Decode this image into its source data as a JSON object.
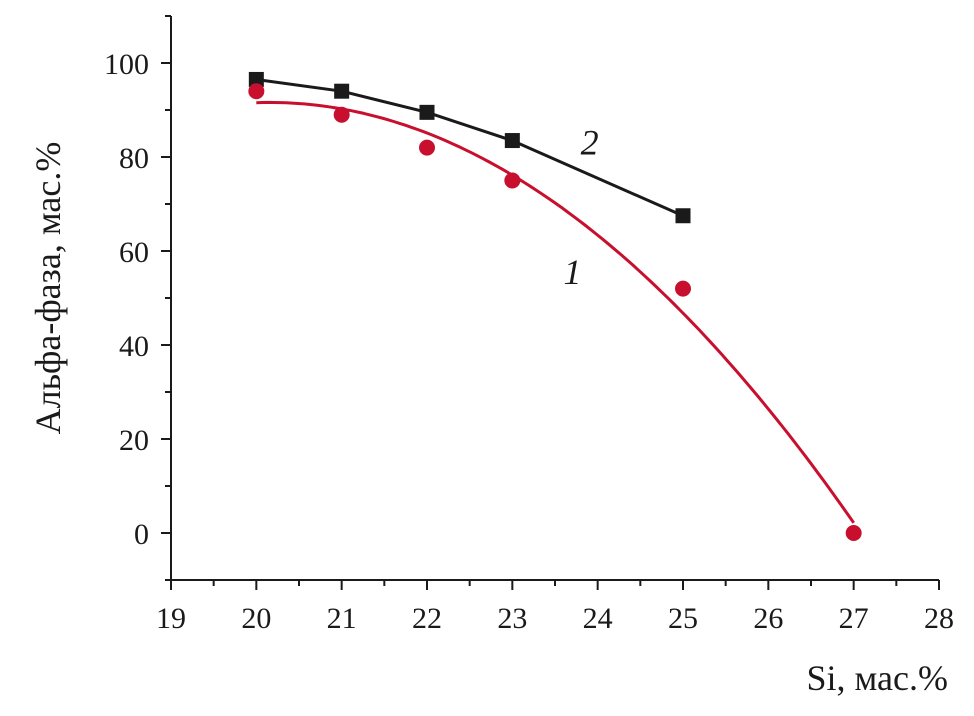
{
  "chart_data": {
    "type": "line",
    "xlabel": "Si, мас.%",
    "ylabel": "Альфа-фаза, мас.%",
    "xlim": [
      19,
      28
    ],
    "ylim": [
      -10,
      110
    ],
    "x_ticks": [
      19,
      20,
      21,
      22,
      23,
      24,
      25,
      26,
      27,
      28
    ],
    "y_ticks": [
      0,
      20,
      40,
      60,
      80,
      100
    ],
    "x_tick_labels": [
      "19",
      "20",
      "21",
      "22",
      "23",
      "24",
      "25",
      "26",
      "27",
      "28"
    ],
    "y_tick_labels": [
      "0",
      "20",
      "40",
      "60",
      "80",
      "100"
    ],
    "grid": false,
    "series": [
      {
        "name": "1",
        "color": "#c8102e",
        "marker": "circle",
        "fit": "smooth-curve",
        "x": [
          20,
          21,
          22,
          23,
          25,
          27
        ],
        "y": [
          94,
          89,
          82,
          75,
          52,
          0
        ]
      },
      {
        "name": "2",
        "color": "#1a1a1a",
        "marker": "square",
        "fit": "line",
        "x": [
          20,
          21,
          22,
          23,
          25
        ],
        "y": [
          96.5,
          94,
          89.5,
          83.5,
          67.5
        ]
      }
    ]
  }
}
